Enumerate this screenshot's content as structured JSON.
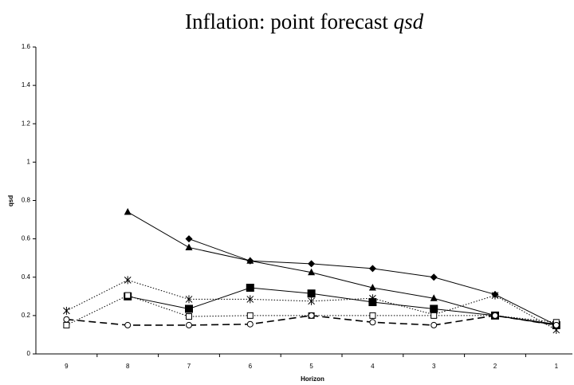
{
  "chart_data": {
    "type": "line",
    "title": "Inflation: point forecast",
    "title_emphasis": "qsd",
    "x_label": "Horizon",
    "y_label": "qsd",
    "categories": [
      "9",
      "8",
      "7",
      "6",
      "5",
      "4",
      "3",
      "2",
      "1"
    ],
    "ylim": [
      0,
      1.6
    ],
    "yticks": [
      0,
      0.2,
      0.4,
      0.6,
      0.8,
      1,
      1.2,
      1.4,
      1.6
    ],
    "grid": false,
    "series": [
      {
        "color": "#000000",
        "marker": "diamond",
        "line": "solid",
        "values": [
          null,
          null,
          0.6,
          0.485,
          0.47,
          0.445,
          0.4,
          0.31,
          0.15
        ]
      },
      {
        "color": "#000000",
        "marker": "triangle",
        "line": "solid",
        "values": [
          null,
          0.74,
          0.555,
          0.485,
          0.425,
          0.345,
          0.29,
          0.2,
          0.155
        ]
      },
      {
        "color": "#000000",
        "marker": "square",
        "line": "solid",
        "values": [
          null,
          0.3,
          0.235,
          0.345,
          0.315,
          0.27,
          0.235,
          0.2,
          0.15
        ]
      },
      {
        "color": "#000000",
        "marker": "star",
        "line": "dotted",
        "values": [
          0.225,
          0.385,
          0.285,
          0.285,
          0.275,
          0.29,
          0.205,
          0.305,
          0.125
        ]
      },
      {
        "color": "#000000",
        "marker": "open-square",
        "line": "dotted",
        "values": [
          0.15,
          0.305,
          0.195,
          0.2,
          0.2,
          0.2,
          0.2,
          0.2,
          0.165
        ]
      },
      {
        "color": "#000000",
        "marker": "circle",
        "line": "dashed",
        "values": [
          0.18,
          0.15,
          0.15,
          0.155,
          0.2,
          0.165,
          0.15,
          0.2,
          0.15
        ]
      }
    ]
  }
}
